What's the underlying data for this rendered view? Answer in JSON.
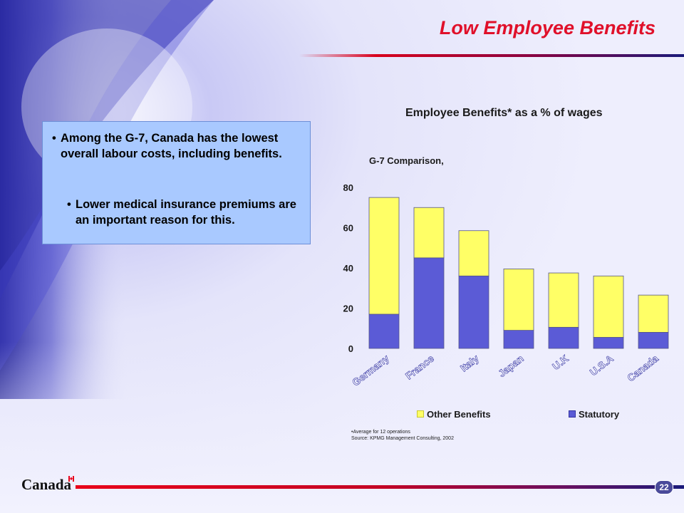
{
  "slide": {
    "title": "Low Employee Benefits",
    "page_number": "22",
    "logo_text": "Canada"
  },
  "bullets": {
    "main": "Among the G-7, Canada has the lowest overall labour costs, including benefits.",
    "sub": "Lower medical insurance premiums are an important reason for this."
  },
  "footnote": {
    "line1": "•Average for 12 operations",
    "line2": "Source:  KPMG Management Consulting, 2002"
  },
  "chart_data": {
    "type": "bar",
    "stacked": true,
    "title": "Employee Benefits* as a % of wages",
    "subtitle": "G-7 Comparison,",
    "categories": [
      "Germany",
      "France",
      "Italy",
      "Japan",
      "U.K",
      "U.S.A",
      "Canada"
    ],
    "series": [
      {
        "name": "Statutory",
        "color": "#5b5bd6",
        "values": [
          17,
          45,
          36,
          9,
          10.5,
          5.5,
          8
        ]
      },
      {
        "name": "Other Benefits",
        "color": "#ffff66",
        "values": [
          58,
          25,
          22.5,
          30.5,
          27,
          30.5,
          18.5
        ]
      }
    ],
    "yticks": [
      0,
      20,
      40,
      60,
      80
    ],
    "ylim": [
      0,
      80
    ],
    "legend": [
      "Other Benefits",
      "Statutory"
    ],
    "legend_position": "bottom"
  }
}
